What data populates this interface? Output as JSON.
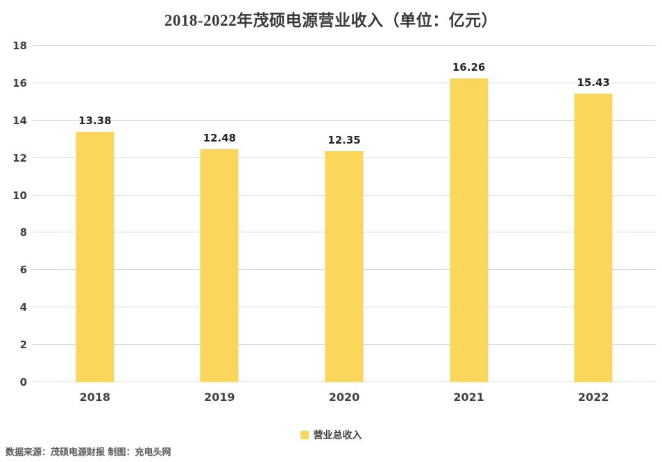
{
  "chart_data": {
    "type": "bar",
    "title": "2018-2022年茂硕电源营业收入（单位：亿元）",
    "categories": [
      "2018",
      "2019",
      "2020",
      "2021",
      "2022"
    ],
    "series": [
      {
        "name": "营业总收入",
        "values": [
          13.38,
          12.48,
          12.35,
          16.26,
          15.43
        ]
      }
    ],
    "xlabel": "",
    "ylabel": "",
    "ylim": [
      0,
      18
    ],
    "ytick_step": 2,
    "grid": true,
    "legend_position": "bottom",
    "value_labels": [
      "13.38",
      "12.48",
      "12.35",
      "16.26",
      "15.43"
    ]
  },
  "footer": {
    "source_text": "数据来源：茂硕电源财报 制图：充电头网"
  },
  "colors": {
    "bar": "#fad65b",
    "grid": "#d9d9d9",
    "title_text": "#3b3838",
    "axis_text": "#404040",
    "footer_text": "#595959"
  }
}
